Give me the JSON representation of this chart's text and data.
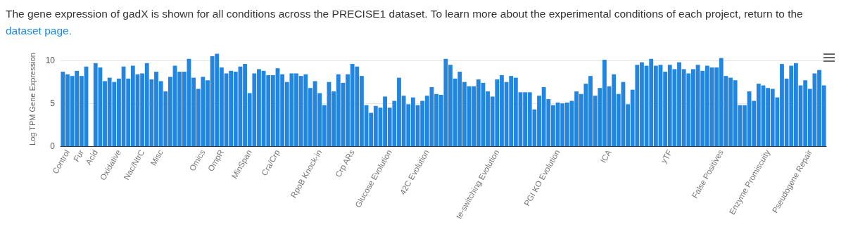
{
  "chart_data": {
    "type": "bar",
    "title": "The gene expression of gadX is shown for all conditions across the PRECISE1 dataset. To learn more about the experimental conditions of each project, return to the",
    "annotations": [
      "dataset page."
    ],
    "ylabel": "Log TPM Gene Expression",
    "ylim": [
      0,
      11
    ],
    "yticks": [
      0,
      5,
      10
    ],
    "grid": "y",
    "color": "#2285e0",
    "categories": [
      null,
      "Control",
      null,
      null,
      "Fur",
      null,
      null,
      "Acid",
      null,
      null,
      null,
      null,
      "Oxidative",
      null,
      null,
      null,
      null,
      "Nac/NtrC",
      null,
      null,
      null,
      "Misc",
      null,
      null,
      null,
      null,
      null,
      null,
      null,
      null,
      "Omics",
      null,
      null,
      null,
      "OmpR",
      null,
      null,
      null,
      null,
      null,
      "MinSpan",
      null,
      null,
      null,
      null,
      null,
      "Cra/Crp",
      null,
      null,
      null,
      null,
      null,
      null,
      null,
      null,
      "RpoB Knock-in",
      null,
      null,
      null,
      null,
      null,
      null,
      "Crp ARs",
      null,
      null,
      null,
      null,
      null,
      null,
      null,
      "Glucose Evolution",
      null,
      null,
      null,
      null,
      null,
      null,
      null,
      "42C Evolution",
      null,
      null,
      null,
      null,
      null,
      null,
      null,
      null,
      null,
      null,
      null,
      null,
      null,
      null,
      "te-switching Evolution",
      null,
      null,
      null,
      null,
      null,
      null,
      null,
      null,
      null,
      null,
      null,
      null,
      "PGI KO Evolution",
      null,
      null,
      null,
      null,
      null,
      null,
      null,
      null,
      null,
      null,
      "ICA",
      null,
      null,
      null,
      null,
      null,
      null,
      null,
      null,
      null,
      null,
      null,
      null,
      "yTF",
      null,
      null,
      null,
      null,
      null,
      null,
      null,
      null,
      null,
      null,
      "False Positives",
      null,
      null,
      null,
      null,
      null,
      null,
      null,
      null,
      null,
      "Enzyme Promiscuity",
      null,
      null,
      null,
      null,
      null,
      null,
      null,
      null,
      "Pseudogene Repair",
      null,
      null,
      null
    ],
    "values": [
      8.7,
      8.4,
      8.2,
      8.8,
      8.2,
      9.3,
      0,
      9.7,
      9.2,
      7.6,
      8.0,
      7.5,
      7.9,
      9.3,
      7.9,
      9.4,
      8.4,
      8.5,
      9.7,
      7.8,
      8.7,
      7.6,
      6.4,
      8.1,
      9.4,
      8.7,
      8.7,
      10.2,
      8.0,
      6.7,
      8.1,
      7.7,
      10.5,
      10.8,
      9.2,
      8.5,
      8.8,
      8.7,
      9.3,
      9.6,
      6.2,
      8.5,
      9.0,
      8.8,
      8.3,
      8.3,
      9.1,
      8.4,
      7.5,
      8.5,
      8.5,
      8.2,
      8.4,
      6.8,
      7.6,
      6.2,
      4.8,
      7.5,
      6.4,
      8.4,
      7.4,
      8.4,
      9.6,
      9.3,
      8.2,
      4.8,
      3.9,
      4.7,
      4.5,
      5.8,
      4.5,
      5.3,
      8.0,
      5.9,
      4.9,
      5.7,
      4.8,
      5.3,
      5.9,
      6.9,
      6.1,
      6.0,
      10.2,
      9.5,
      7.9,
      8.7,
      7.5,
      7.0,
      7.0,
      7.8,
      7.4,
      6.4,
      5.8,
      7.8,
      8.3,
      7.5,
      8.2,
      8.0,
      6.3,
      6.3,
      6.3,
      4.3,
      5.9,
      6.9,
      5.5,
      4.8,
      5.1,
      5.0,
      5.1,
      5.3,
      6.4,
      6.1,
      7.3,
      8.2,
      5.9,
      6.8,
      10.1,
      7.0,
      8.4,
      6.1,
      7.5,
      4.9,
      6.6,
      9.5,
      9.8,
      9.4,
      10.2,
      9.4,
      9.5,
      8.7,
      9.5,
      9.0,
      9.8,
      9.0,
      8.5,
      9.0,
      9.5,
      8.8,
      9.4,
      9.2,
      9.2,
      10.3,
      8.2,
      8.0,
      7.7,
      4.8,
      4.8,
      6.4,
      5.3,
      7.3,
      7.1,
      6.8,
      6.7,
      5.7,
      9.6,
      7.9,
      9.4,
      9.7,
      7.1,
      7.7,
      6.7,
      8.5,
      8.9,
      7.1
    ]
  }
}
